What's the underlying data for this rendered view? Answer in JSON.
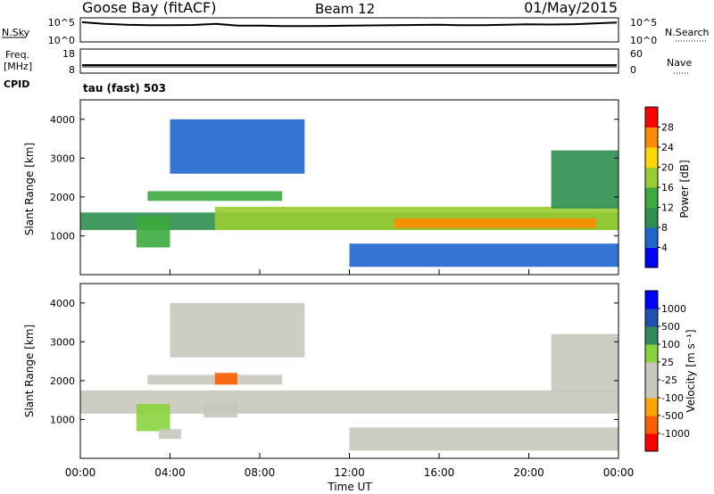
{
  "header": {
    "station": "Goose Bay (fitACF)",
    "beam": "Beam 12",
    "date": "01/May/2015"
  },
  "top_panels": {
    "nsky": {
      "left_label": "N.Sky",
      "right_label": "N.Search",
      "left_ticks": [
        "10^5",
        "10^0"
      ],
      "right_ticks": [
        "10^5",
        "10^0"
      ],
      "noise_trace": [
        0.85,
        0.78,
        0.74,
        0.72,
        0.72,
        0.73,
        0.78,
        0.7,
        0.7,
        0.68,
        0.68,
        0.69,
        0.7,
        0.71,
        0.72,
        0.73,
        0.74,
        0.72,
        0.72,
        0.74,
        0.76,
        0.75,
        0.76,
        0.8,
        0.84
      ]
    },
    "freq": {
      "left_label_1": "Freq.",
      "left_label_2": "[MHz]",
      "right_label": "Nave",
      "left_ticks": [
        "18",
        "8"
      ],
      "right_ticks": [
        "60",
        "0"
      ],
      "cpid_label": "CPID",
      "cpid_value": "tau (fast) 503"
    }
  },
  "colors": {
    "low_power": "#0000ff",
    "high_power": "#ff0000",
    "ground_scatter": "#bdbdb4"
  },
  "time_axis": {
    "ticks": [
      "00:00",
      "04:00",
      "08:00",
      "12:00",
      "16:00",
      "20:00",
      "00:00"
    ],
    "label": "Time UT"
  },
  "chart_data": [
    {
      "type": "heatmap",
      "title": "Power",
      "ylabel": "Slant Range [km]",
      "xlabel": "Time UT",
      "ylim": [
        0,
        4500
      ],
      "yticks": [
        1000,
        2000,
        3000,
        4000
      ],
      "xlim_hours": [
        0,
        24
      ],
      "colorbar": {
        "label": "Power [dB]",
        "ticks": [
          4,
          8,
          12,
          16,
          20,
          24,
          28
        ],
        "range": [
          0,
          32
        ],
        "colors": [
          "#0000ff",
          "#1f66cc",
          "#2f8f4f",
          "#3daa3d",
          "#9acd32",
          "#ffd700",
          "#ff8c00",
          "#ff0000"
        ]
      },
      "regions": [
        {
          "t": [
            0.0,
            24.0
          ],
          "r": [
            1150,
            1600
          ],
          "v": 9
        },
        {
          "t": [
            6.0,
            24.0
          ],
          "r": [
            1150,
            1750
          ],
          "v": 17
        },
        {
          "t": [
            14.0,
            23.0
          ],
          "r": [
            1200,
            1450
          ],
          "v": 24
        },
        {
          "t": [
            3.0,
            9.0
          ],
          "r": [
            1900,
            2150
          ],
          "v": 12
        },
        {
          "t": [
            4.0,
            10.0
          ],
          "r": [
            2600,
            4000
          ],
          "v": 6
        },
        {
          "t": [
            2.5,
            4.0
          ],
          "r": [
            700,
            1500
          ],
          "v": 14
        },
        {
          "t": [
            12.0,
            24.0
          ],
          "r": [
            200,
            800
          ],
          "v": 4
        },
        {
          "t": [
            21.0,
            24.0
          ],
          "r": [
            1700,
            3200
          ],
          "v": 8
        }
      ]
    },
    {
      "type": "heatmap",
      "title": "Velocity",
      "ylabel": "Slant Range [km]",
      "xlabel": "Time UT",
      "ylim": [
        0,
        4500
      ],
      "yticks": [
        1000,
        2000,
        3000,
        4000
      ],
      "xlim_hours": [
        0,
        24
      ],
      "colorbar": {
        "label": "Velocity [m s⁻¹]",
        "ticks": [
          1000,
          500,
          100,
          25,
          -25,
          -100,
          -500,
          -1000
        ],
        "range": [
          -1250,
          1250
        ],
        "colors": [
          "#ff0000",
          "#ff5f00",
          "#ffa500",
          "#c8c8be",
          "#c8c8be",
          "#8bd33e",
          "#2e8b57",
          "#2050b0",
          "#0000ff"
        ]
      },
      "regions": [
        {
          "t": [
            0.0,
            24.0
          ],
          "r": [
            1150,
            1750
          ],
          "v": 0
        },
        {
          "t": [
            3.0,
            9.0
          ],
          "r": [
            1900,
            2150
          ],
          "v": 0
        },
        {
          "t": [
            5.5,
            7.0
          ],
          "r": [
            1050,
            1450
          ],
          "v": -300
        },
        {
          "t": [
            6.0,
            7.0
          ],
          "r": [
            1900,
            2200
          ],
          "v": -800
        },
        {
          "t": [
            2.5,
            4.0
          ],
          "r": [
            700,
            1400
          ],
          "v": 200
        },
        {
          "t": [
            3.5,
            4.5
          ],
          "r": [
            500,
            750
          ],
          "v": -300
        },
        {
          "t": [
            4.0,
            10.0
          ],
          "r": [
            2600,
            4000
          ],
          "v": 0
        },
        {
          "t": [
            12.0,
            24.0
          ],
          "r": [
            200,
            800
          ],
          "v": 50
        },
        {
          "t": [
            21.0,
            24.0
          ],
          "r": [
            1700,
            3200
          ],
          "v": 50
        }
      ]
    }
  ]
}
